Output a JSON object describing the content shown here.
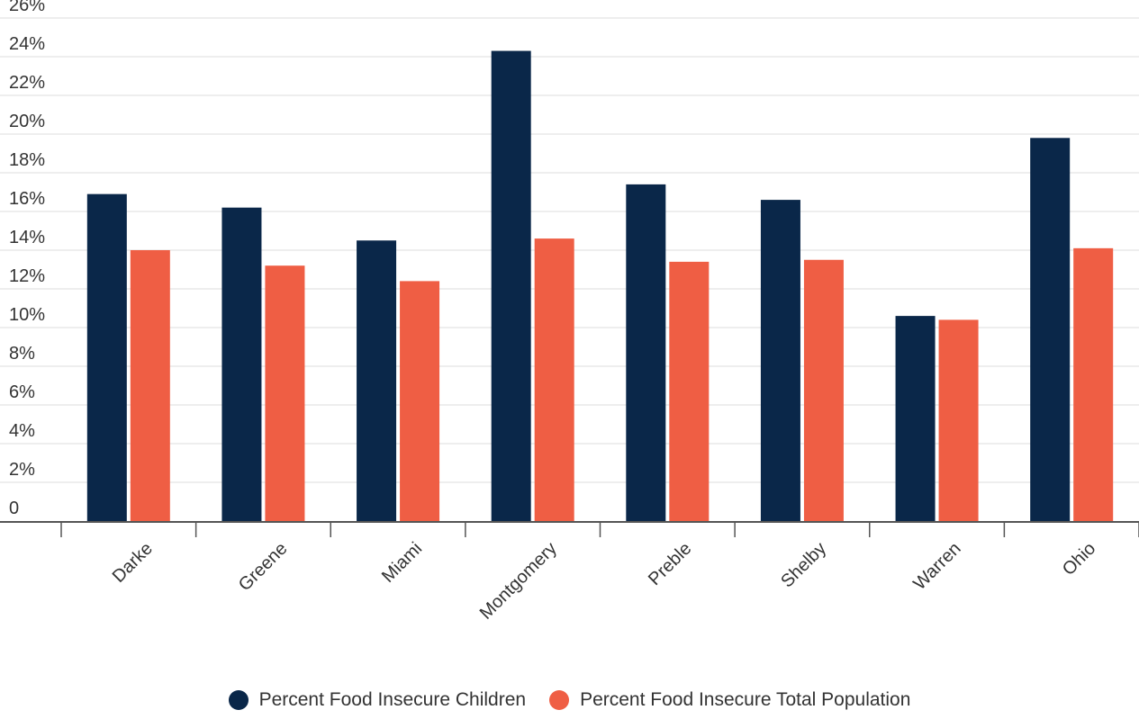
{
  "colors": {
    "children": "#0a2749",
    "total": "#ef5e44",
    "grid": "#dddddd",
    "axis": "#555555",
    "text": "#333333"
  },
  "legend": {
    "children_label": "Percent Food Insecure Children",
    "total_label": "Percent Food Insecure Total Population"
  },
  "chart_data": {
    "type": "bar",
    "title": "",
    "xlabel": "",
    "ylabel": "",
    "categories": [
      "Darke",
      "Greene",
      "Miami",
      "Montgomery",
      "Preble",
      "Shelby",
      "Warren",
      "Ohio"
    ],
    "series": [
      {
        "name": "Percent Food Insecure Children",
        "color": "#0a2749",
        "values": [
          16.9,
          16.2,
          14.5,
          24.3,
          17.4,
          16.6,
          10.6,
          19.8
        ]
      },
      {
        "name": "Percent Food Insecure Total Population",
        "color": "#ef5e44",
        "values": [
          14.0,
          13.2,
          12.4,
          14.6,
          13.4,
          13.5,
          10.4,
          14.1
        ]
      }
    ],
    "ylim": [
      0,
      26
    ],
    "yticks": [
      0,
      2,
      4,
      6,
      8,
      10,
      12,
      14,
      16,
      18,
      20,
      22,
      24,
      26
    ],
    "ytick_labels": [
      "0",
      "2%",
      "4%",
      "6%",
      "8%",
      "10%",
      "12%",
      "14%",
      "16%",
      "18%",
      "20%",
      "22%",
      "24%",
      "26%"
    ],
    "grid": true,
    "legend_position": "bottom-center"
  }
}
